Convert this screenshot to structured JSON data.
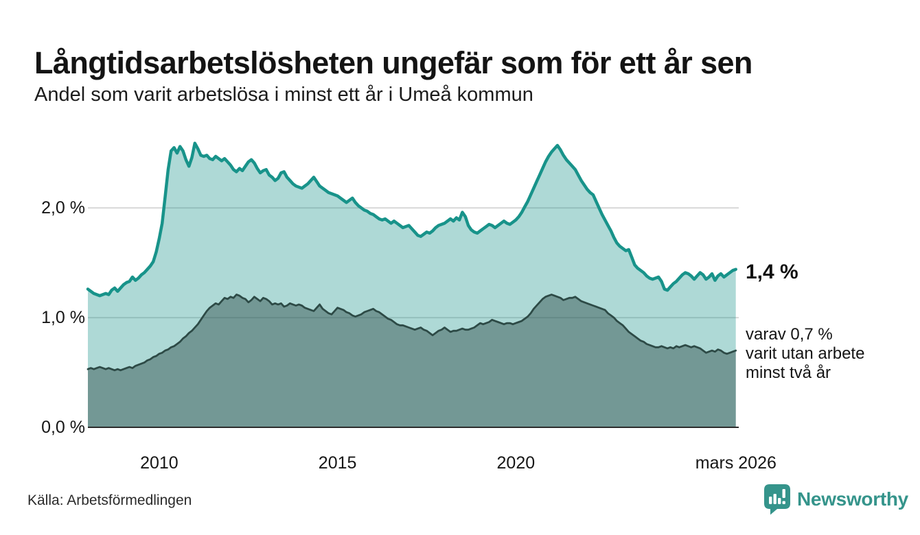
{
  "header": {
    "title": "Långtidsarbetslösheten ungefär som för ett år sen",
    "subtitle": "Andel som varit arbetslösa i minst ett år i Umeå kommun"
  },
  "annotations": {
    "end_value": "1,4 %",
    "note": "varav 0,7 %\nvarit utan arbete\nminst två år"
  },
  "footer": {
    "source": "Källa: Arbetsförmedlingen"
  },
  "logo": {
    "name": "Newsworthy",
    "color": "#35948b"
  },
  "colors": {
    "line_primary": "#18938a",
    "fill_primary": "rgba(24,147,138,0.35)",
    "line_secondary": "#2d4a46",
    "fill_secondary": "rgba(45,74,70,0.45)",
    "gridline": "#d8d8d8",
    "baseline": "#2b2b2b"
  },
  "chart_data": {
    "type": "area",
    "title": "Långtidsarbetslösheten ungefär som för ett år sen",
    "subtitle": "Andel som varit arbetslösa i minst ett år i Umeå kommun",
    "unit": "%",
    "grid": true,
    "legend_position": "none",
    "x_axis": {
      "range": [
        2008.0,
        2026.25
      ],
      "start_year": 2008.0,
      "step_months": 1,
      "ticks": [
        {
          "x": 2010,
          "label": "2010"
        },
        {
          "x": 2015,
          "label": "2015"
        },
        {
          "x": 2020,
          "label": "2020"
        },
        {
          "x": 2026.17,
          "label": "mars 2026"
        }
      ]
    },
    "y_axis": {
      "range": [
        0,
        2.72
      ],
      "ticks": [
        {
          "value": 0,
          "label": "0,0 %"
        },
        {
          "value": 1,
          "label": "1,0 %"
        },
        {
          "value": 2,
          "label": "2,0 %"
        }
      ]
    },
    "series": [
      {
        "name": "Arbetslösa minst ett år",
        "end_label": "1,4 %",
        "end_value": 1.4,
        "line_color": "#18938a",
        "fill_color": "rgba(24,147,138,0.35)",
        "line_width": 4.5,
        "values": [
          1.26,
          1.24,
          1.22,
          1.21,
          1.2,
          1.21,
          1.22,
          1.21,
          1.25,
          1.27,
          1.24,
          1.27,
          1.3,
          1.32,
          1.33,
          1.37,
          1.34,
          1.36,
          1.39,
          1.41,
          1.44,
          1.47,
          1.51,
          1.6,
          1.72,
          1.86,
          2.1,
          2.35,
          2.52,
          2.55,
          2.5,
          2.56,
          2.52,
          2.44,
          2.38,
          2.46,
          2.59,
          2.54,
          2.48,
          2.47,
          2.48,
          2.45,
          2.44,
          2.47,
          2.45,
          2.43,
          2.45,
          2.42,
          2.39,
          2.35,
          2.33,
          2.36,
          2.34,
          2.38,
          2.42,
          2.44,
          2.41,
          2.36,
          2.32,
          2.34,
          2.35,
          2.3,
          2.28,
          2.25,
          2.27,
          2.32,
          2.33,
          2.28,
          2.25,
          2.22,
          2.2,
          2.19,
          2.18,
          2.2,
          2.22,
          2.25,
          2.28,
          2.24,
          2.2,
          2.18,
          2.16,
          2.14,
          2.13,
          2.12,
          2.11,
          2.09,
          2.07,
          2.05,
          2.07,
          2.09,
          2.05,
          2.02,
          2.0,
          1.98,
          1.97,
          1.95,
          1.94,
          1.92,
          1.9,
          1.89,
          1.9,
          1.88,
          1.86,
          1.88,
          1.86,
          1.84,
          1.82,
          1.83,
          1.84,
          1.81,
          1.78,
          1.75,
          1.74,
          1.76,
          1.78,
          1.77,
          1.79,
          1.82,
          1.84,
          1.85,
          1.86,
          1.88,
          1.9,
          1.88,
          1.91,
          1.89,
          1.96,
          1.92,
          1.84,
          1.8,
          1.78,
          1.77,
          1.79,
          1.81,
          1.83,
          1.85,
          1.84,
          1.82,
          1.84,
          1.86,
          1.88,
          1.86,
          1.85,
          1.87,
          1.89,
          1.92,
          1.96,
          2.01,
          2.06,
          2.12,
          2.18,
          2.24,
          2.3,
          2.36,
          2.42,
          2.47,
          2.51,
          2.54,
          2.57,
          2.53,
          2.48,
          2.44,
          2.41,
          2.38,
          2.35,
          2.3,
          2.25,
          2.21,
          2.17,
          2.14,
          2.12,
          2.06,
          2.0,
          1.94,
          1.89,
          1.84,
          1.79,
          1.73,
          1.68,
          1.65,
          1.63,
          1.61,
          1.62,
          1.55,
          1.48,
          1.45,
          1.43,
          1.41,
          1.38,
          1.36,
          1.35,
          1.36,
          1.37,
          1.33,
          1.26,
          1.25,
          1.28,
          1.31,
          1.33,
          1.36,
          1.39,
          1.41,
          1.4,
          1.38,
          1.35,
          1.38,
          1.41,
          1.39,
          1.35,
          1.37,
          1.4,
          1.34,
          1.38,
          1.4,
          1.37,
          1.39,
          1.41,
          1.43,
          1.44
        ]
      },
      {
        "name": "Arbetslösa minst två år",
        "end_label": "varav 0,7 % varit utan arbete minst två år",
        "end_value": 0.7,
        "line_color": "#2d4a46",
        "fill_color": "rgba(45,74,70,0.45)",
        "line_width": 2.8,
        "values": [
          0.53,
          0.54,
          0.53,
          0.54,
          0.55,
          0.54,
          0.53,
          0.54,
          0.53,
          0.52,
          0.53,
          0.52,
          0.53,
          0.54,
          0.55,
          0.54,
          0.56,
          0.57,
          0.58,
          0.59,
          0.61,
          0.62,
          0.64,
          0.65,
          0.67,
          0.68,
          0.7,
          0.71,
          0.73,
          0.74,
          0.76,
          0.78,
          0.81,
          0.83,
          0.86,
          0.88,
          0.91,
          0.94,
          0.98,
          1.02,
          1.06,
          1.09,
          1.11,
          1.13,
          1.12,
          1.15,
          1.18,
          1.17,
          1.19,
          1.18,
          1.21,
          1.2,
          1.18,
          1.17,
          1.14,
          1.16,
          1.19,
          1.17,
          1.15,
          1.18,
          1.17,
          1.15,
          1.12,
          1.13,
          1.12,
          1.13,
          1.1,
          1.11,
          1.13,
          1.12,
          1.11,
          1.12,
          1.11,
          1.09,
          1.08,
          1.07,
          1.06,
          1.09,
          1.12,
          1.08,
          1.06,
          1.04,
          1.03,
          1.06,
          1.09,
          1.08,
          1.07,
          1.05,
          1.04,
          1.02,
          1.01,
          1.02,
          1.03,
          1.05,
          1.06,
          1.07,
          1.08,
          1.06,
          1.05,
          1.03,
          1.01,
          0.99,
          0.98,
          0.96,
          0.94,
          0.93,
          0.93,
          0.92,
          0.91,
          0.9,
          0.89,
          0.9,
          0.91,
          0.89,
          0.88,
          0.86,
          0.84,
          0.86,
          0.88,
          0.89,
          0.91,
          0.89,
          0.87,
          0.88,
          0.88,
          0.89,
          0.9,
          0.89,
          0.89,
          0.9,
          0.91,
          0.93,
          0.95,
          0.94,
          0.95,
          0.96,
          0.98,
          0.97,
          0.96,
          0.95,
          0.94,
          0.95,
          0.95,
          0.94,
          0.95,
          0.96,
          0.97,
          0.99,
          1.01,
          1.04,
          1.08,
          1.11,
          1.14,
          1.17,
          1.19,
          1.2,
          1.21,
          1.2,
          1.19,
          1.18,
          1.16,
          1.17,
          1.18,
          1.18,
          1.19,
          1.17,
          1.15,
          1.14,
          1.13,
          1.12,
          1.11,
          1.1,
          1.09,
          1.08,
          1.07,
          1.04,
          1.02,
          1.0,
          0.97,
          0.95,
          0.93,
          0.9,
          0.87,
          0.85,
          0.83,
          0.81,
          0.79,
          0.78,
          0.76,
          0.75,
          0.74,
          0.73,
          0.73,
          0.74,
          0.73,
          0.72,
          0.73,
          0.72,
          0.74,
          0.73,
          0.74,
          0.75,
          0.74,
          0.73,
          0.74,
          0.73,
          0.72,
          0.7,
          0.68,
          0.69,
          0.7,
          0.69,
          0.71,
          0.7,
          0.68,
          0.67,
          0.68,
          0.69,
          0.7
        ]
      }
    ]
  }
}
